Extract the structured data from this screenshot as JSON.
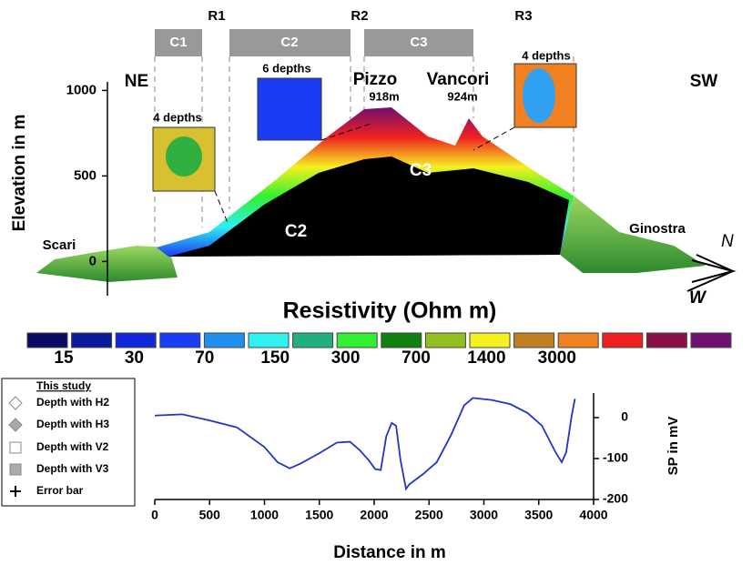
{
  "section": {
    "profile_labels": [
      "C1",
      "C2",
      "C3"
    ],
    "profile_markers": [
      "R1",
      "R2",
      "R3"
    ],
    "ends": [
      "NE",
      "SW"
    ],
    "peaks": [
      {
        "name": "Pizzo",
        "elevation": "918m"
      },
      {
        "name": "Vancori",
        "elevation": "924m"
      }
    ],
    "insets": [
      "4 depths",
      "6 depths",
      "4 depths"
    ],
    "places": [
      "Scari",
      "Ginostra"
    ],
    "structures": [
      "C2",
      "C3"
    ],
    "compass": [
      "N",
      "W"
    ],
    "elevation_axis": {
      "label": "Elevation in m",
      "ylim": [
        -200,
        1050
      ],
      "yticks": [
        0,
        500,
        1000
      ]
    }
  },
  "colorbar": {
    "title": "Resistivity (Ohm m)",
    "colors": [
      "#0b0b66",
      "#0b1a9a",
      "#1028d8",
      "#1a3cf5",
      "#2090f0",
      "#30f0f0",
      "#20b080",
      "#30f030",
      "#108010",
      "#90c020",
      "#f5f020",
      "#c08020",
      "#f08020",
      "#f02020",
      "#8b1048",
      "#701070"
    ],
    "labels": [
      15,
      30,
      70,
      150,
      300,
      700,
      1400,
      3000
    ]
  },
  "legend": {
    "title": "This study",
    "entries": [
      "Depth with H2",
      "Depth with H3",
      "Depth with V2",
      "Depth with V3",
      "Error bar"
    ]
  },
  "chart_data": {
    "type": "line",
    "xlabel": "Distance in m",
    "ylabel": "SP in mV",
    "x": [
      0,
      250,
      500,
      750,
      1000,
      1120,
      1230,
      1330,
      1500,
      1660,
      1780,
      1870,
      1950,
      2010,
      2060,
      2110,
      2160,
      2200,
      2240,
      2290,
      2320,
      2450,
      2570,
      2700,
      2820,
      2900,
      3070,
      3240,
      3400,
      3530,
      3650,
      3710,
      3750,
      3800,
      3830
    ],
    "series": [
      {
        "name": "SP",
        "color": "#2233cc",
        "values": [
          5,
          8,
          -7,
          -24,
          -72,
          -109,
          -124,
          -112,
          -87,
          -61,
          -59,
          -80,
          -104,
          -126,
          -128,
          -46,
          -13,
          -20,
          -104,
          -174,
          -163,
          -137,
          -109,
          -43,
          30,
          48,
          43,
          33,
          11,
          -20,
          -83,
          -109,
          -85,
          4,
          46
        ]
      }
    ],
    "xlim": [
      0,
      4000
    ],
    "xticks": [
      0,
      500,
      1000,
      1500,
      2000,
      2500,
      3000,
      3500,
      4000
    ],
    "ylim": [
      -200,
      60
    ],
    "yticks": [
      0,
      -100,
      -200
    ]
  }
}
